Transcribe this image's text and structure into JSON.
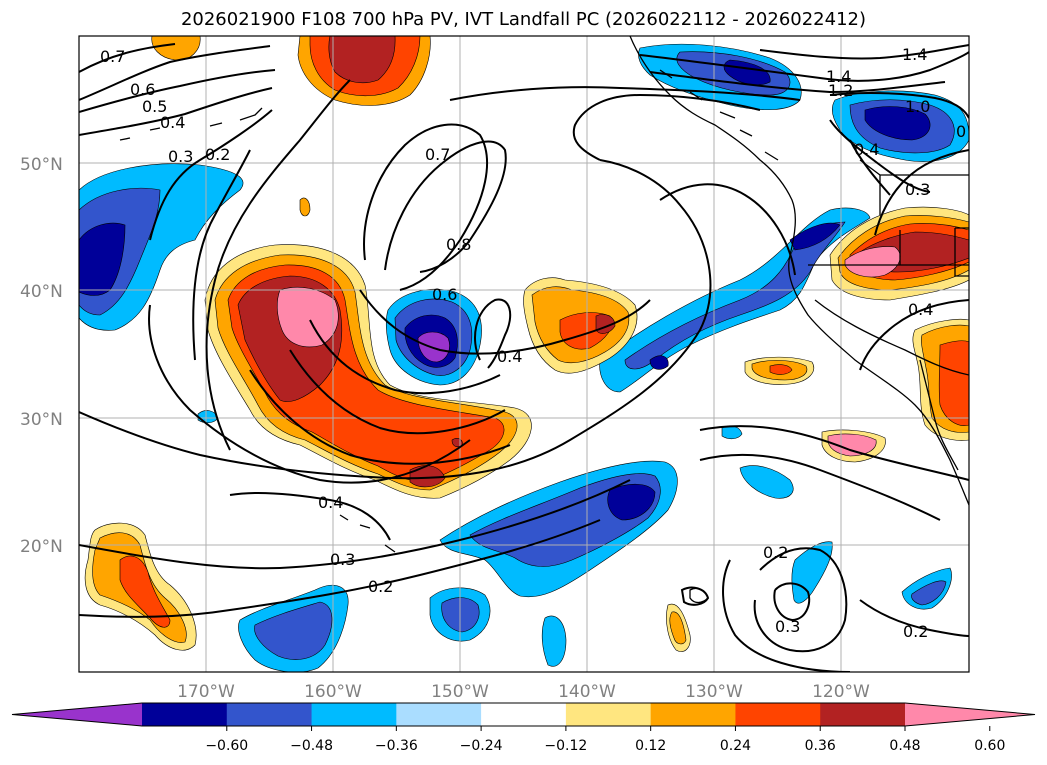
{
  "title": "2026021900 F108 700 hPa PV, IVT Landfall PC (2026022112 - 2026022412)",
  "lat_labels": [
    "50°N",
    "40°N",
    "30°N",
    "20°N"
  ],
  "lon_labels": [
    "170°W",
    "160°W",
    "150°W",
    "140°W",
    "130°W",
    "120°W"
  ],
  "colorbar": {
    "colors": [
      "#9933cc",
      "#000099",
      "#3355cc",
      "#00bbff",
      "#aaddff",
      "#ffffff",
      "#ffe680",
      "#ffa500",
      "#ff4400",
      "#b22222",
      "#ff88aa"
    ],
    "ticks": [
      "−0.60",
      "−0.48",
      "−0.36",
      "−0.24",
      "−0.12",
      "0.12",
      "0.24",
      "0.36",
      "0.48",
      "0.60"
    ]
  },
  "contour_labels": [
    "0.7",
    "0.6",
    "0.5",
    "0.4",
    "0.3",
    "0.2",
    "0.7",
    "0.8",
    "0.6",
    "0.4",
    "1.4",
    "1.2",
    "1.4",
    "1.0",
    "0",
    "0.4",
    "0.3",
    "0.4",
    "0.4",
    "0.3",
    "0.2",
    "0.2",
    "0.3",
    "0.2"
  ]
}
